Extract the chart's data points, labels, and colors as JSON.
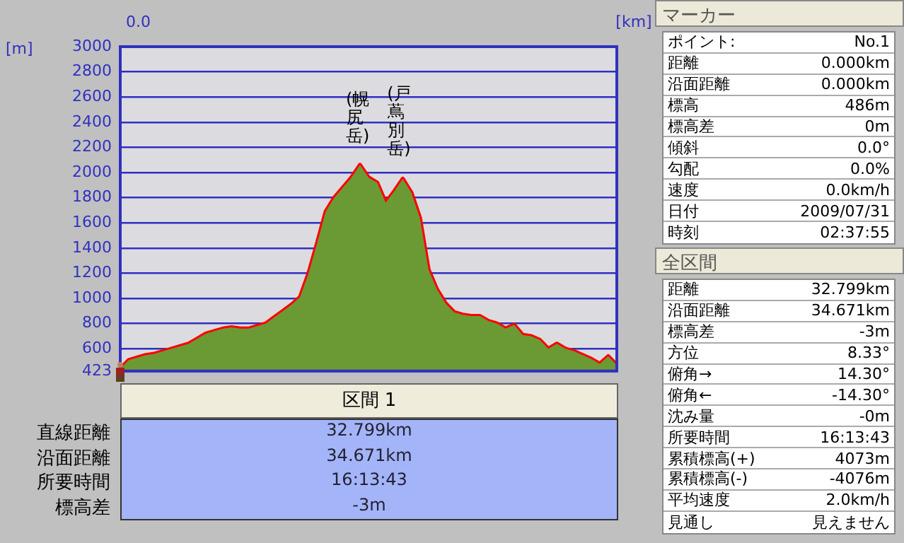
{
  "chart_data": [
    {
      "type": "area",
      "ylabel": "[m]",
      "xlabel": "[km]",
      "categories": [
        null,
        null,
        null,
        null,
        null,
        null,
        null,
        null,
        null,
        null,
        null,
        null,
        null,
        null,
        null,
        null,
        null,
        null,
        null,
        null,
        null,
        null,
        null,
        null,
        null,
        null,
        null,
        null,
        null,
        null,
        null,
        null,
        null,
        null,
        null,
        null,
        null,
        null,
        null,
        null,
        null,
        null,
        null,
        null,
        null,
        null,
        null,
        null,
        null,
        null,
        null,
        null,
        null,
        null,
        null,
        null,
        null,
        null,
        null
      ],
      "series": [
        {
          "type": "area",
          "color": "#6b9a35",
          "values": [
            440,
            510,
            530,
            550,
            560,
            580,
            600,
            620,
            640,
            680,
            720,
            740,
            760,
            770,
            760,
            760,
            780,
            800,
            850,
            900,
            950,
            1010,
            1200,
            1440,
            1690,
            1800,
            1880,
            1960,
            2060,
            1960,
            1920,
            1760,
            1850,
            1950,
            1840,
            1640,
            1230,
            1070,
            960,
            890,
            870,
            860,
            860,
            820,
            800,
            760,
            790,
            710,
            700,
            670,
            600,
            640,
            600,
            580,
            550,
            520,
            480,
            540,
            470
          ]
        },
        {
          "type": "line",
          "color": "#ff0000",
          "values": [
            440,
            510,
            530,
            550,
            560,
            580,
            600,
            620,
            640,
            680,
            720,
            740,
            760,
            770,
            760,
            760,
            780,
            800,
            850,
            900,
            950,
            1010,
            1200,
            1440,
            1690,
            1800,
            1880,
            1960,
            2060,
            1960,
            1920,
            1760,
            1850,
            1950,
            1840,
            1640,
            1230,
            1070,
            960,
            890,
            870,
            860,
            860,
            820,
            800,
            760,
            790,
            710,
            700,
            670,
            600,
            640,
            600,
            580,
            550,
            520,
            480,
            540,
            470
          ]
        }
      ],
      "ylim": [
        423,
        3000
      ],
      "yticks": [
        423,
        600,
        800,
        1000,
        1200,
        1400,
        1600,
        1800,
        2000,
        2200,
        2400,
        2600,
        2800,
        3000
      ],
      "grid": "y",
      "marker": "none",
      "line_style": "solid",
      "legend": false,
      "annotations": [
        "0.0",
        {
          "text": "(幌尻岳)",
          "y": 2060
        },
        {
          "text": "(戸蔦別岳)",
          "y": 1950
        }
      ]
    },
    {
      "type": "other",
      "title": "マーカー",
      "annotations": [
        "ポイント:",
        "No.1",
        "距離",
        "0.000km",
        "沿面距離",
        "0.000km",
        "標高",
        "486m",
        "標高差",
        "0m",
        "傾斜",
        "0.0°",
        "勾配",
        "0.0%",
        "速度",
        "0.0km/h",
        "日付",
        "2009/07/31",
        "時刻",
        "02:37:55"
      ]
    },
    {
      "type": "other",
      "title": "全区間",
      "annotations": [
        "距離",
        "32.799km",
        "沿面距離",
        "34.671km",
        "標高差",
        "-3m",
        "方位",
        "8.33°",
        "俯角→",
        "14.30°",
        "俯角←",
        "-14.30°",
        "沈み量",
        "-0m",
        "所要時間",
        "16:13:43",
        "累積標高(+)",
        "4073m",
        "累積標高(-)",
        "-4076m",
        "平均速度",
        "2.0km/h",
        "見通し",
        "見えません"
      ]
    },
    {
      "type": "other",
      "title": "区間 1",
      "annotations": [
        "直線距離",
        "32.799km",
        "沿面距離",
        "34.671km",
        "所要時間",
        "16:13:43",
        "標高差",
        "-3m"
      ]
    }
  ]
}
